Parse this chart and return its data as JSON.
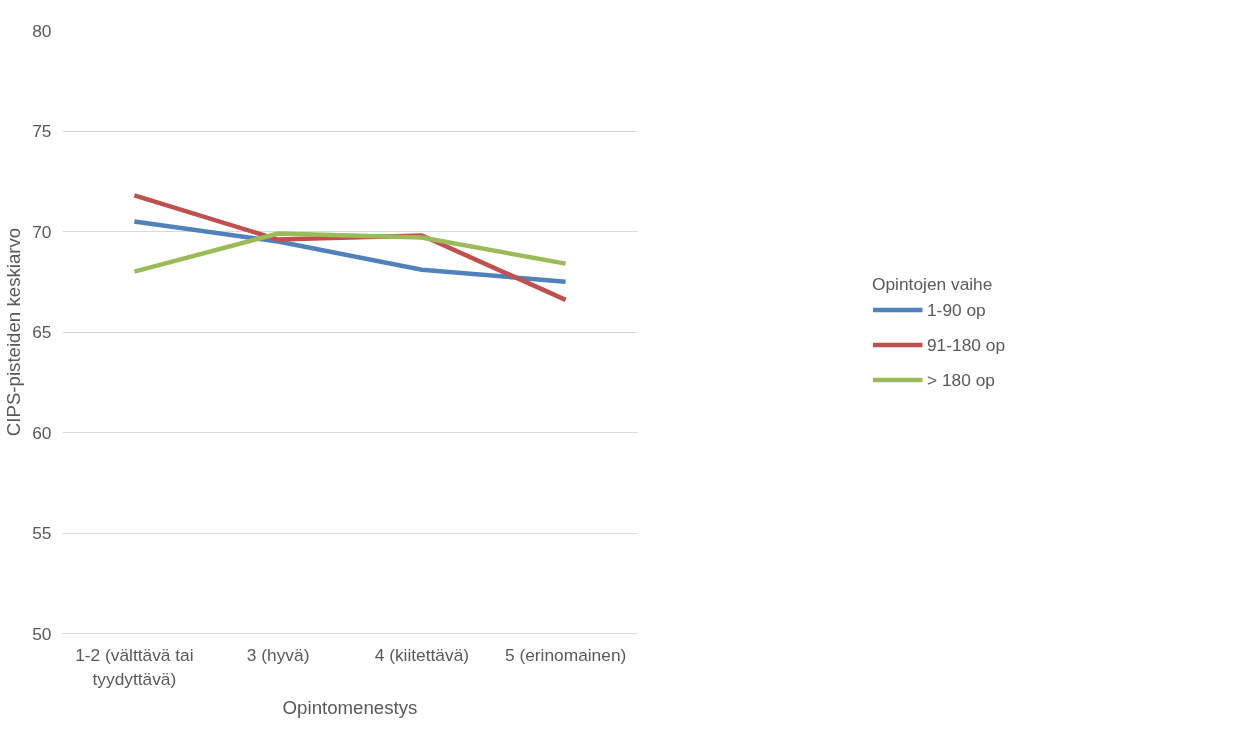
{
  "chart_data": {
    "type": "line",
    "xlabel": "Opintomenestys",
    "ylabel": "CIPS-pisteiden keskiarvo",
    "legend_title": "Opintojen vaihe",
    "categories": [
      "1-2 (välttävä tai tyydyttävä)",
      "3 (hyvä)",
      "4 (kiitettävä)",
      "5 (erinomainen)"
    ],
    "series": [
      {
        "name": "1-90 op",
        "color": "#4f81bd",
        "values": [
          70.5,
          69.5,
          68.1,
          67.5
        ]
      },
      {
        "name": "91-180 op",
        "color": "#c0504d",
        "values": [
          71.8,
          69.6,
          69.8,
          66.6
        ]
      },
      {
        "name": "> 180 op",
        "color": "#9bbb59",
        "values": [
          68.0,
          69.9,
          69.7,
          68.4
        ]
      }
    ],
    "ylim": [
      50,
      80
    ],
    "yticks": [
      50,
      55,
      60,
      65,
      70,
      75,
      80
    ],
    "grid": "y",
    "legend": "right",
    "marker": "none",
    "line_style": "solid"
  }
}
